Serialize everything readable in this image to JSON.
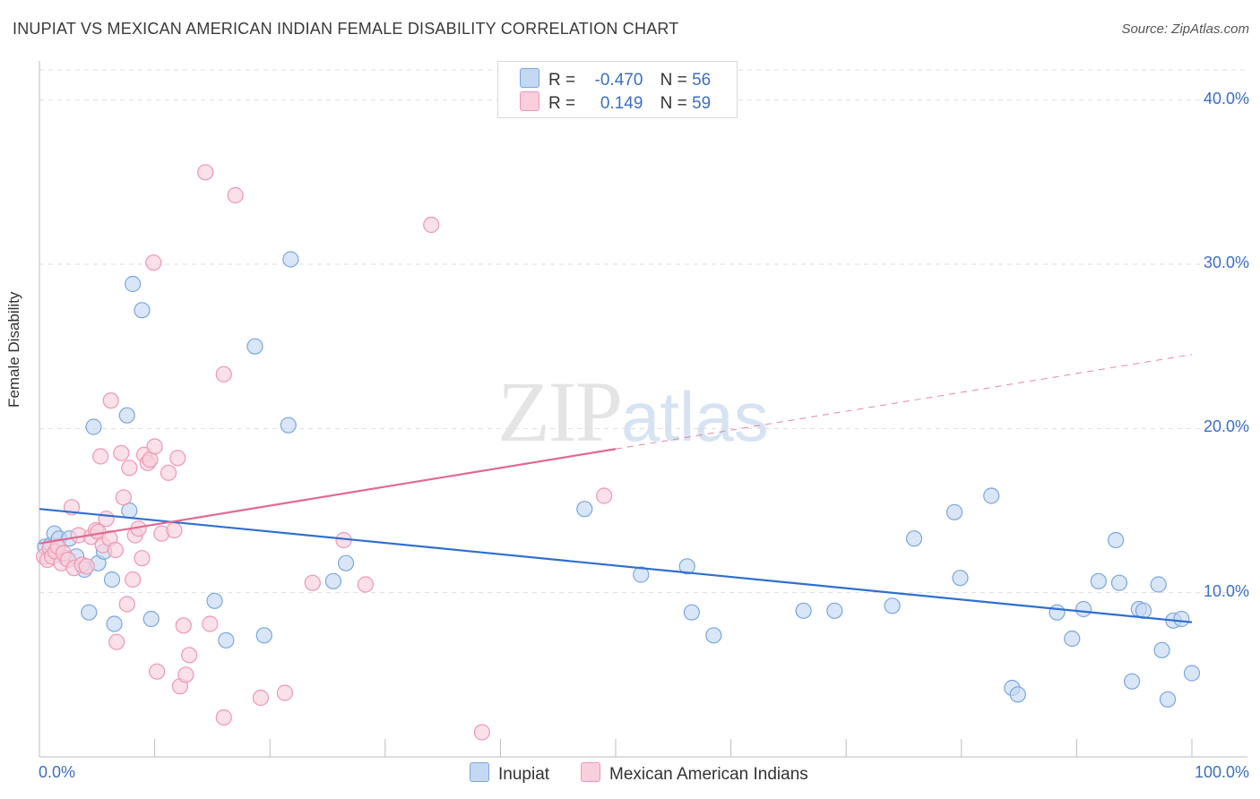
{
  "header": {
    "title": "INUPIAT VS MEXICAN AMERICAN INDIAN FEMALE DISABILITY CORRELATION CHART",
    "source": "Source: ZipAtlas.com"
  },
  "watermark": {
    "zip": "ZIP",
    "atlas": "atlas"
  },
  "legend_top": {
    "rows": [
      {
        "r_label": "R =",
        "r_value": "-0.470",
        "n_label": "N =",
        "n_value": "56"
      },
      {
        "r_label": "R =",
        "r_value": "0.149",
        "n_label": "N =",
        "n_value": "59"
      }
    ]
  },
  "colors": {
    "inupiat_fill": "#c5d8f2",
    "inupiat_stroke": "#7aa6df",
    "inupiat_line": "#2f6fcf",
    "mexican_fill": "#f8cfdb",
    "mexican_stroke": "#ee97b1",
    "mexican_line": "#e06a92",
    "tick_text": "#3b6fc4",
    "grid": "#dddddd"
  },
  "chart_data": {
    "type": "scatter",
    "title": "INUPIAT VS MEXICAN AMERICAN INDIAN FEMALE DISABILITY CORRELATION CHART",
    "xlabel": "",
    "ylabel": "Female Disability",
    "xlim": [
      0,
      100
    ],
    "ylim": [
      0,
      42
    ],
    "x_tick_labels": [
      "0.0%",
      "100.0%"
    ],
    "y_tick_values": [
      10,
      20,
      30,
      40
    ],
    "y_tick_labels": [
      "10.0%",
      "20.0%",
      "30.0%",
      "40.0%"
    ],
    "legend_position": "bottom-center",
    "series": [
      {
        "name": "Inupiat",
        "R": -0.47,
        "N": 56,
        "trend": {
          "x0": 0,
          "y0": 15.1,
          "x1": 100,
          "y1": 8.2,
          "dashed_from": null
        },
        "points": [
          [
            0.5,
            12.8
          ],
          [
            1.0,
            12.9
          ],
          [
            1.3,
            13.6
          ],
          [
            1.7,
            13.3
          ],
          [
            2.3,
            12.1
          ],
          [
            2.6,
            13.3
          ],
          [
            3.2,
            12.2
          ],
          [
            3.9,
            11.4
          ],
          [
            4.3,
            8.8
          ],
          [
            5.1,
            11.8
          ],
          [
            5.6,
            12.5
          ],
          [
            6.3,
            10.8
          ],
          [
            6.5,
            8.1
          ],
          [
            4.7,
            20.1
          ],
          [
            7.6,
            20.8
          ],
          [
            7.8,
            15.0
          ],
          [
            8.1,
            28.8
          ],
          [
            8.9,
            27.2
          ],
          [
            9.7,
            8.4
          ],
          [
            15.2,
            9.5
          ],
          [
            16.2,
            7.1
          ],
          [
            18.7,
            25.0
          ],
          [
            19.5,
            7.4
          ],
          [
            21.6,
            20.2
          ],
          [
            21.8,
            30.3
          ],
          [
            25.5,
            10.7
          ],
          [
            26.6,
            11.8
          ],
          [
            47.3,
            15.1
          ],
          [
            52.2,
            11.1
          ],
          [
            56.2,
            11.6
          ],
          [
            56.6,
            8.8
          ],
          [
            58.5,
            7.4
          ],
          [
            66.3,
            8.9
          ],
          [
            69.0,
            8.9
          ],
          [
            74.0,
            9.2
          ],
          [
            75.9,
            13.3
          ],
          [
            79.4,
            14.9
          ],
          [
            79.9,
            10.9
          ],
          [
            82.6,
            15.9
          ],
          [
            84.4,
            4.2
          ],
          [
            84.9,
            3.8
          ],
          [
            88.3,
            8.8
          ],
          [
            89.6,
            7.2
          ],
          [
            90.6,
            9.0
          ],
          [
            91.9,
            10.7
          ],
          [
            93.4,
            13.2
          ],
          [
            93.7,
            10.6
          ],
          [
            94.8,
            4.6
          ],
          [
            95.4,
            9.0
          ],
          [
            95.8,
            8.9
          ],
          [
            97.1,
            10.5
          ],
          [
            97.4,
            6.5
          ],
          [
            97.9,
            3.5
          ],
          [
            98.4,
            8.3
          ],
          [
            99.1,
            8.4
          ],
          [
            100.0,
            5.1
          ]
        ]
      },
      {
        "name": "Mexican American Indians",
        "R": 0.149,
        "N": 59,
        "trend": {
          "x0": 0,
          "y0": 13.0,
          "x1": 100,
          "y1": 24.5,
          "dashed_from": 50
        },
        "points": [
          [
            0.4,
            12.2
          ],
          [
            0.7,
            12.0
          ],
          [
            0.9,
            12.7
          ],
          [
            1.1,
            12.2
          ],
          [
            1.4,
            12.5
          ],
          [
            1.6,
            12.8
          ],
          [
            1.9,
            11.8
          ],
          [
            2.1,
            12.4
          ],
          [
            2.5,
            12.0
          ],
          [
            2.8,
            15.2
          ],
          [
            3.0,
            11.5
          ],
          [
            3.4,
            13.5
          ],
          [
            3.7,
            11.7
          ],
          [
            4.1,
            11.6
          ],
          [
            4.5,
            13.4
          ],
          [
            4.9,
            13.8
          ],
          [
            5.1,
            13.7
          ],
          [
            5.3,
            18.3
          ],
          [
            5.5,
            12.9
          ],
          [
            5.8,
            14.5
          ],
          [
            6.1,
            13.3
          ],
          [
            6.2,
            21.7
          ],
          [
            6.6,
            12.6
          ],
          [
            6.7,
            7.0
          ],
          [
            7.1,
            18.5
          ],
          [
            7.3,
            15.8
          ],
          [
            7.6,
            9.3
          ],
          [
            7.8,
            17.6
          ],
          [
            8.1,
            10.8
          ],
          [
            8.3,
            13.5
          ],
          [
            8.6,
            13.9
          ],
          [
            8.9,
            12.1
          ],
          [
            9.1,
            18.4
          ],
          [
            9.4,
            17.9
          ],
          [
            9.6,
            18.1
          ],
          [
            9.9,
            30.1
          ],
          [
            10.0,
            18.9
          ],
          [
            10.2,
            5.2
          ],
          [
            10.6,
            13.6
          ],
          [
            11.2,
            17.3
          ],
          [
            11.7,
            13.8
          ],
          [
            12.0,
            18.2
          ],
          [
            12.2,
            4.3
          ],
          [
            12.5,
            8.0
          ],
          [
            12.7,
            5.0
          ],
          [
            13.0,
            6.2
          ],
          [
            14.4,
            35.6
          ],
          [
            14.8,
            8.1
          ],
          [
            16.0,
            23.3
          ],
          [
            16.0,
            2.4
          ],
          [
            17.0,
            34.2
          ],
          [
            19.2,
            3.6
          ],
          [
            21.3,
            3.9
          ],
          [
            23.7,
            10.6
          ],
          [
            26.4,
            13.2
          ],
          [
            28.3,
            10.5
          ],
          [
            34.0,
            32.4
          ],
          [
            38.4,
            1.5
          ],
          [
            49.0,
            15.9
          ]
        ]
      }
    ]
  },
  "legend_bottom": {
    "items": [
      {
        "label": "Inupiat"
      },
      {
        "label": "Mexican American Indians"
      }
    ]
  }
}
